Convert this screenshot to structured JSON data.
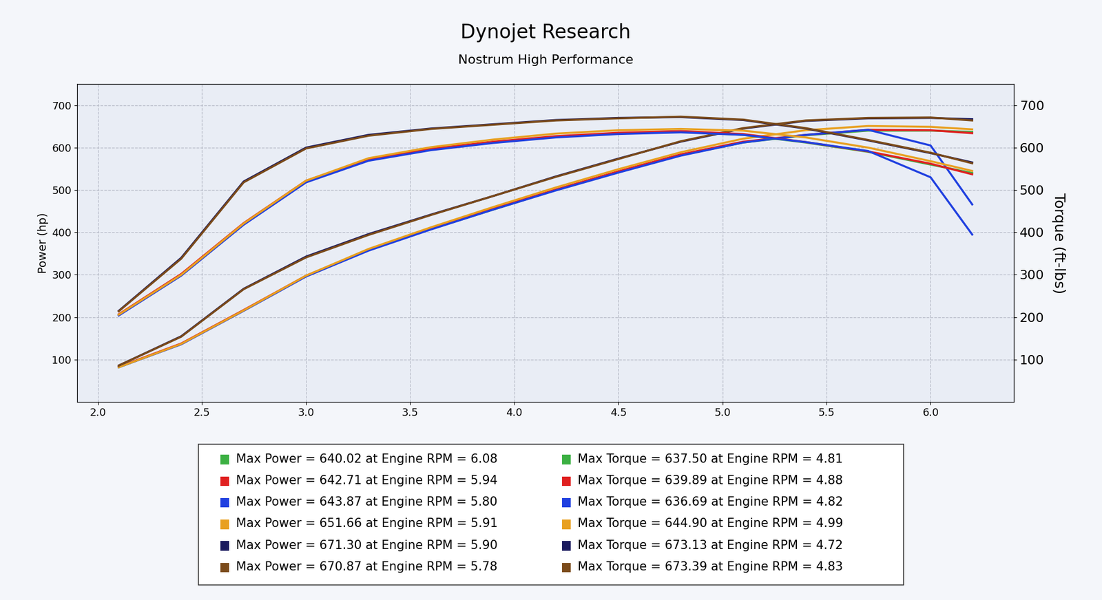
{
  "chart_data": {
    "type": "line",
    "title": "Dynojet Research",
    "subtitle": "Nostrum High Performance",
    "y_label": "Power (hp)",
    "y2_label": "Torque (ft-lbs)",
    "x": [
      2.1,
      2.4,
      2.7,
      3.0,
      3.3,
      3.6,
      3.9,
      4.2,
      4.5,
      4.8,
      5.1,
      5.4,
      5.7,
      6.0,
      6.2
    ],
    "xlim": [
      1.9,
      6.4
    ],
    "xticks": [
      {
        "value": 2,
        "label": "2.0"
      },
      2.5,
      {
        "value": 3,
        "label": "3.0"
      },
      3.5,
      {
        "value": 4,
        "label": "4.0"
      },
      4.5,
      {
        "value": 5,
        "label": "5.0"
      },
      5.5,
      {
        "value": 6,
        "label": "6.0"
      }
    ],
    "ylim": [
      0,
      750
    ],
    "yticks": [
      100,
      200,
      300,
      400,
      500,
      600,
      700
    ],
    "y2lim": [
      0,
      750
    ],
    "y2ticks": [
      100,
      200,
      300,
      400,
      500,
      600,
      700
    ],
    "grid": true,
    "series": [
      {
        "color": "#3cb043",
        "axis": "y",
        "values": [
          82,
          137,
          216,
          297,
          358,
          408,
          454,
          500,
          542,
          582,
          612,
          629,
          640,
          640,
          637
        ]
      },
      {
        "color": "#e02020",
        "axis": "y",
        "values": [
          83,
          138,
          217,
          298,
          359,
          409,
          456,
          501,
          544,
          584,
          614,
          630,
          642,
          641,
          634
        ]
      },
      {
        "color": "#2040e0",
        "axis": "y",
        "values": [
          82,
          136,
          215,
          296,
          357,
          407,
          454,
          499,
          541,
          581,
          612,
          630,
          642,
          605,
          466
        ]
      },
      {
        "color": "#e8a020",
        "axis": "y",
        "values": [
          82,
          137,
          216,
          298,
          361,
          412,
          460,
          506,
          549,
          589,
          621,
          641,
          651,
          649,
          643
        ]
      },
      {
        "color": "#1a1a5e",
        "axis": "y",
        "values": [
          86,
          155,
          267,
          343,
          396,
          442,
          486,
          532,
          574,
          614,
          645,
          663,
          669,
          670,
          667
        ]
      },
      {
        "color": "#7a4a1a",
        "axis": "y",
        "values": [
          86,
          154,
          266,
          341,
          394,
          441,
          486,
          531,
          573,
          615,
          646,
          664,
          670,
          671,
          664
        ]
      },
      {
        "color": "#3cb043",
        "axis": "y2",
        "values": [
          205,
          300,
          420,
          520,
          570,
          595,
          612,
          625,
          633,
          637,
          630,
          612,
          590,
          560,
          540
        ]
      },
      {
        "color": "#e02020",
        "axis": "y2",
        "values": [
          207,
          302,
          422,
          522,
          572,
          597,
          614,
          627,
          635,
          639,
          632,
          613,
          591,
          562,
          537
        ]
      },
      {
        "color": "#2040e0",
        "axis": "y2",
        "values": [
          204,
          298,
          418,
          518,
          569,
          594,
          611,
          624,
          632,
          636,
          630,
          613,
          592,
          530,
          395
        ]
      },
      {
        "color": "#e8a020",
        "axis": "y2",
        "values": [
          206,
          300,
          421,
          522,
          575,
          601,
          619,
          633,
          641,
          644,
          640,
          624,
          600,
          568,
          545
        ]
      },
      {
        "color": "#1a1a5e",
        "axis": "y2",
        "values": [
          215,
          340,
          520,
          600,
          630,
          645,
          655,
          665,
          670,
          672,
          665,
          645,
          617,
          587,
          565
        ]
      },
      {
        "color": "#7a4a1a",
        "axis": "y2",
        "values": [
          214,
          338,
          518,
          598,
          628,
          644,
          654,
          664,
          669,
          673,
          666,
          646,
          618,
          588,
          563
        ]
      }
    ],
    "annotations": [
      {
        "text": "Max Power = 640.02 at Engine RPM = 6.08",
        "color": "#3cb043"
      },
      {
        "text": "Max Power = 642.71 at Engine RPM = 5.94",
        "color": "#e02020"
      },
      {
        "text": "Max Power = 643.87 at Engine RPM = 5.80",
        "color": "#2040e0"
      },
      {
        "text": "Max Power = 651.66 at Engine RPM = 5.91",
        "color": "#e8a020"
      },
      {
        "text": "Max Power = 671.30 at Engine RPM = 5.90",
        "color": "#1a1a5e"
      },
      {
        "text": "Max Power = 670.87 at Engine RPM = 5.78",
        "color": "#7a4a1a"
      },
      {
        "text": "Max Torque = 637.50 at Engine RPM = 4.81",
        "color": "#3cb043"
      },
      {
        "text": "Max Torque = 639.89 at Engine RPM = 4.88",
        "color": "#e02020"
      },
      {
        "text": "Max Torque = 636.69 at Engine RPM = 4.82",
        "color": "#2040e0"
      },
      {
        "text": "Max Torque = 644.90 at Engine RPM = 4.99",
        "color": "#e8a020"
      },
      {
        "text": "Max Torque = 673.13 at Engine RPM = 4.72",
        "color": "#1a1a5e"
      },
      {
        "text": "Max Torque = 673.39 at Engine RPM = 4.83",
        "color": "#7a4a1a"
      }
    ]
  }
}
